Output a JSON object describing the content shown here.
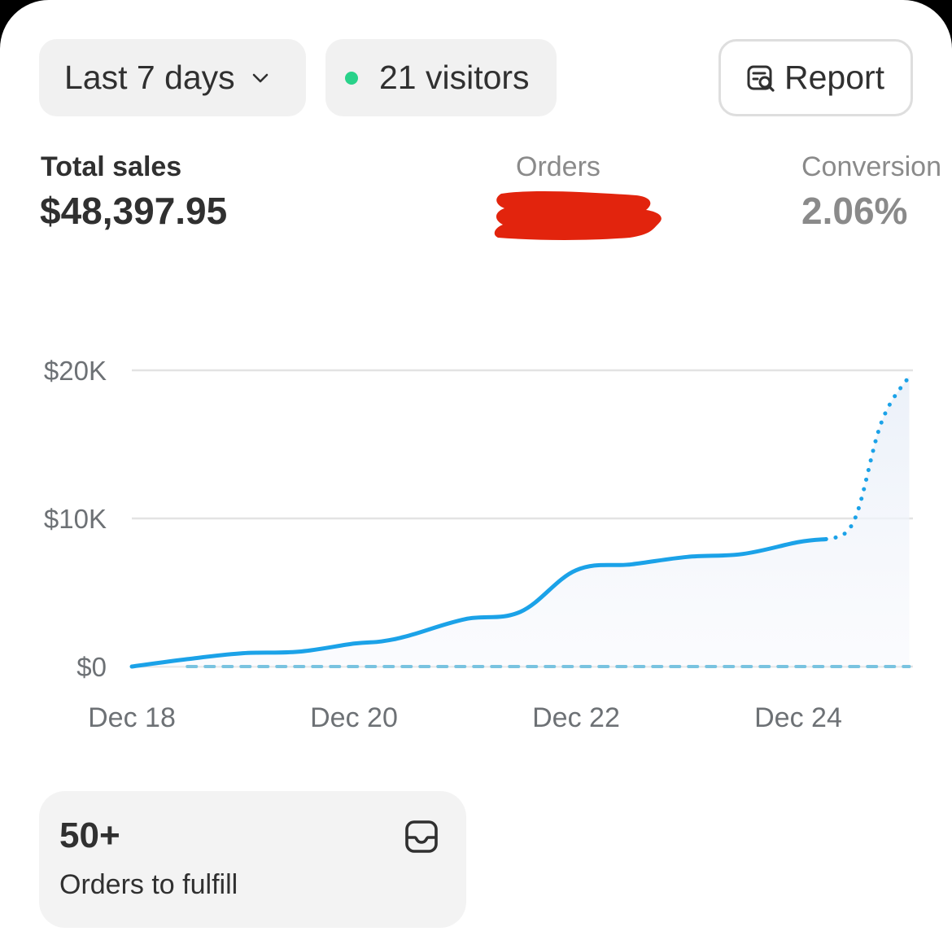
{
  "toolbar": {
    "date_range_label": "Last 7 days",
    "visitors_label": "21 visitors",
    "live_dot_color": "#29d28a",
    "report_label": "Report",
    "report_icon": "report-search-icon",
    "dropdown_icon": "chevron-down-icon"
  },
  "metrics": {
    "total_sales": {
      "label": "Total sales",
      "value": "$48,397.95"
    },
    "orders": {
      "label": "Orders",
      "value_redacted": true
    },
    "conversion": {
      "label": "Conversion",
      "value": "2.06%"
    }
  },
  "chart_data": {
    "type": "line",
    "x_labels": [
      "Dec 18",
      "Dec 20",
      "Dec 22",
      "Dec 24"
    ],
    "y_ticks": [
      "$20K",
      "$10K",
      "$0"
    ],
    "ylim": [
      0,
      20000
    ],
    "grid": true,
    "line_color": "#1ba2e8",
    "series": [
      {
        "style": "solid",
        "points": [
          {
            "x": "Dec 18 00:00",
            "y": 0
          },
          {
            "x": "Dec 18 12:00",
            "y": 500
          },
          {
            "x": "Dec 19 00:00",
            "y": 900
          },
          {
            "x": "Dec 19 12:00",
            "y": 1000
          },
          {
            "x": "Dec 20 00:00",
            "y": 1550
          },
          {
            "x": "Dec 20 06:00",
            "y": 1700
          },
          {
            "x": "Dec 20 12:00",
            "y": 2100
          },
          {
            "x": "Dec 21 00:00",
            "y": 3200
          },
          {
            "x": "Dec 21 12:00",
            "y": 3700
          },
          {
            "x": "Dec 22 00:00",
            "y": 6500
          },
          {
            "x": "Dec 22 12:00",
            "y": 6900
          },
          {
            "x": "Dec 23 00:00",
            "y": 7400
          },
          {
            "x": "Dec 23 12:00",
            "y": 7600
          },
          {
            "x": "Dec 24 00:00",
            "y": 8400
          },
          {
            "x": "Dec 24 06:00",
            "y": 8600
          }
        ]
      },
      {
        "style": "dotted",
        "points": [
          {
            "x": "Dec 24 06:00",
            "y": 8600
          },
          {
            "x": "Dec 24 12:00",
            "y": 9800
          },
          {
            "x": "Dec 24 18:00",
            "y": 16500
          },
          {
            "x": "Dec 25 00:00",
            "y": 19600
          }
        ]
      },
      {
        "style": "dashed-baseline",
        "points": [
          {
            "x": "Dec 18 12:00",
            "y": 0
          },
          {
            "x": "Dec 25 00:00",
            "y": 0
          }
        ]
      }
    ]
  },
  "fulfill_tile": {
    "value": "50+",
    "label": "Orders to fulfill",
    "icon": "inbox-icon"
  }
}
